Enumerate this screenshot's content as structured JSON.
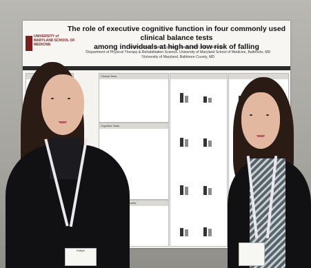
{
  "poster": {
    "title_line1": "The role of executive cognitive function in four commonly used clinical balance tests",
    "title_line2": "among individuals at high and low risk of falling",
    "authors": "Kaitlyn Wilde¹, Mollie Synung¹, Rachel Neff¹, Kelly Westlake¹",
    "affiliation1": "¹Department of Physical Therapy & Rehabilitation Science, University of Maryland School of Medicine, Baltimore, MD",
    "affiliation2": "²University of Maryland, Baltimore County, MD",
    "logo_text": "UNIVERSITY of MARYLAND SCHOOL OF MEDICINE",
    "sections": {
      "clinical_tests": "Clinical Tests",
      "cognitive_tests": "Cognitive Tests",
      "results": "Results"
    }
  },
  "badges": {
    "left": "Kaitlyn"
  }
}
